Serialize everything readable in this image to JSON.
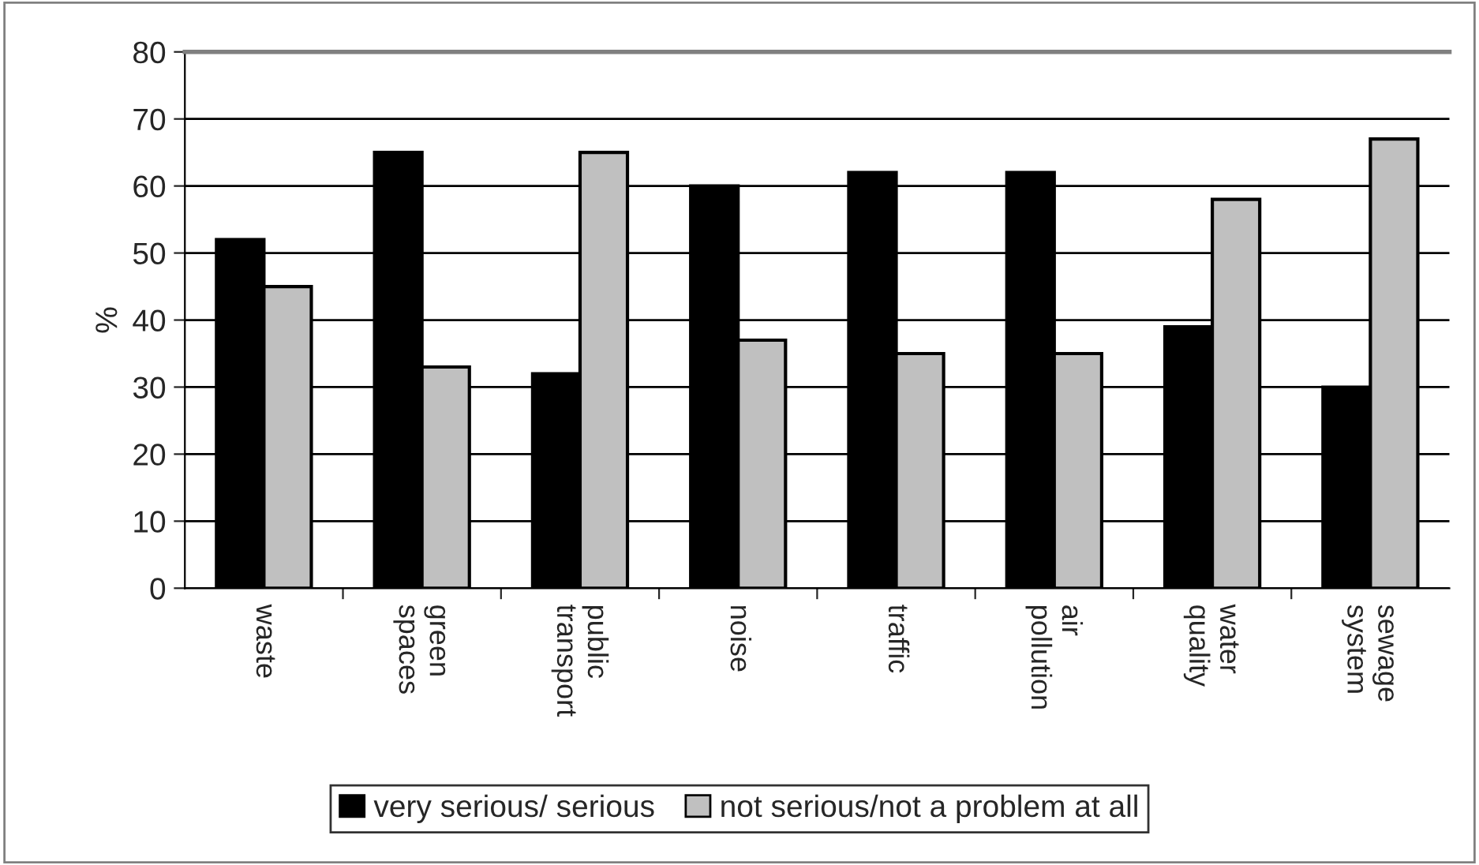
{
  "chart_data": {
    "type": "bar",
    "ylabel": "%",
    "categories": [
      "waste",
      "green\nspaces",
      "public\ntransport",
      "noise",
      "traffic",
      "air\npollution",
      "water\nquality",
      "sewage\nsystem"
    ],
    "series": [
      {
        "name": "very serious/ serious",
        "color": "#000000",
        "values": [
          52,
          65,
          32,
          60,
          62,
          62,
          39,
          30
        ]
      },
      {
        "name": "not serious/not a problem at all",
        "color": "#c0c0c0",
        "values": [
          45,
          33,
          65,
          37,
          35,
          35,
          58,
          67
        ]
      }
    ],
    "ylim": [
      0,
      80
    ],
    "yticks": [
      0,
      10,
      20,
      30,
      40,
      50,
      60,
      70,
      80
    ],
    "grid": "y",
    "legend": "bottom"
  }
}
